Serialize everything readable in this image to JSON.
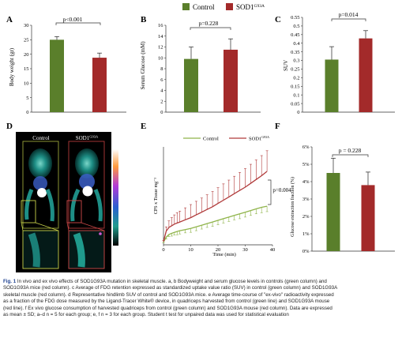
{
  "legend": {
    "items": [
      {
        "label": "Control",
        "color": "#5a7f2b"
      },
      {
        "label": "SOD1",
        "sup": "G93A",
        "color": "#a32a2a"
      }
    ]
  },
  "colors": {
    "control": "#5a7f2b",
    "sod": "#a32a2a",
    "control_line": "#8fb44a",
    "sod_line": "#b03a3a"
  },
  "panels": {
    "A": {
      "letter": "A",
      "p": "p<0.001"
    },
    "B": {
      "letter": "B",
      "p": "p=0.228"
    },
    "C": {
      "letter": "C",
      "p": "p=0.014"
    },
    "D": {
      "letter": "D",
      "col1": "Control",
      "col2": "SOD1",
      "col2_sup": "G93A",
      "scale_max": "3",
      "scale_min": "0",
      "scale_label": "SUV"
    },
    "E": {
      "letter": "E",
      "p": "p=0.004"
    },
    "F": {
      "letter": "F",
      "p": "p = 0.228"
    }
  },
  "chart_data": [
    {
      "id": "A",
      "type": "bar",
      "categories": [
        "Control",
        "SOD1G93A"
      ],
      "values": [
        25.0,
        18.8
      ],
      "errors": [
        1.1,
        1.6
      ],
      "ylabel": "Body weight (gr)",
      "ylim": [
        0,
        30
      ],
      "yticks": [
        "0",
        "5",
        "10",
        "15",
        "20",
        "25",
        "30"
      ]
    },
    {
      "id": "B",
      "type": "bar",
      "categories": [
        "Control",
        "SOD1G93A"
      ],
      "values": [
        9.8,
        11.5
      ],
      "errors": [
        2.2,
        2.0
      ],
      "ylabel": "Serum Glucose (mM)",
      "ylim": [
        0,
        16
      ],
      "yticks": [
        "0",
        "2",
        "4",
        "6",
        "8",
        "10",
        "12",
        "14",
        "16"
      ]
    },
    {
      "id": "C",
      "type": "bar",
      "categories": [
        "Control",
        "SOD1G93A"
      ],
      "values": [
        0.305,
        0.428
      ],
      "errors": [
        0.075,
        0.045
      ],
      "ylabel": "SUV",
      "ylim": [
        0,
        0.55
      ],
      "yticks": [
        "0",
        "0.05",
        "0.1",
        "0.15",
        "0.2",
        "0.25",
        "0.3",
        "0.35",
        "0.4",
        "0.45",
        "0.5",
        "0.55"
      ]
    },
    {
      "id": "E",
      "type": "line",
      "xlabel": "Time (min)",
      "ylabel": "CPS x Tissue mg⁻¹",
      "xlim": [
        0,
        40
      ],
      "xticks": [
        "0",
        "10",
        "20",
        "30",
        "40"
      ],
      "series": [
        {
          "name": "Control",
          "x": [
            0,
            1,
            2,
            3,
            4,
            5,
            6,
            8,
            10,
            12,
            14,
            16,
            18,
            20,
            22,
            24,
            26,
            28,
            30,
            32,
            34,
            36,
            38
          ],
          "y": [
            0.5,
            1.4,
            1.9,
            2.1,
            2.3,
            2.45,
            2.6,
            2.8,
            3.0,
            3.3,
            3.6,
            3.9,
            4.2,
            4.5,
            4.8,
            5.1,
            5.4,
            5.7,
            6.0,
            6.3,
            6.6,
            6.9,
            7.1
          ],
          "err": [
            0.1,
            0.3,
            0.4,
            0.5,
            0.5,
            0.6,
            0.6,
            0.6,
            0.7,
            0.7,
            0.7,
            0.7,
            0.8,
            0.8,
            0.8,
            0.8,
            0.8,
            0.9,
            0.9,
            0.9,
            0.9,
            1.0,
            1.0
          ]
        },
        {
          "name": "SOD1G93A",
          "x": [
            0,
            1,
            2,
            3,
            4,
            5,
            6,
            8,
            10,
            12,
            14,
            16,
            18,
            20,
            22,
            24,
            26,
            28,
            30,
            32,
            34,
            36,
            38
          ],
          "y": [
            0.6,
            2.5,
            3.2,
            3.5,
            3.8,
            4.0,
            4.2,
            4.6,
            5.0,
            5.5,
            6.0,
            6.5,
            7.0,
            7.6,
            8.2,
            8.8,
            9.4,
            10.0,
            10.6,
            11.3,
            12.0,
            12.7,
            13.5
          ],
          "err": [
            0.2,
            0.8,
            1.2,
            1.5,
            1.7,
            1.9,
            2.0,
            2.2,
            2.4,
            2.5,
            2.6,
            2.7,
            2.8,
            2.9,
            3.0,
            3.1,
            3.2,
            3.3,
            3.4,
            3.5,
            3.6,
            3.7,
            3.8
          ]
        }
      ]
    },
    {
      "id": "F",
      "type": "bar",
      "categories": [
        "Control",
        "SOD1G93A"
      ],
      "values": [
        4.5,
        3.8
      ],
      "errors": [
        0.85,
        0.75
      ],
      "ylabel": "Glucose extraction fraction (%)",
      "ylim": [
        0,
        6
      ],
      "yticks": [
        "0%",
        "1%",
        "2%",
        "3%",
        "4%",
        "5%",
        "6%"
      ]
    }
  ],
  "caption": {
    "label": "Fig. 1",
    "lines": [
      "In vivo and ex vivo effects of SOD1G93A mutation in skeletal muscle. a, b Bodyweight and serum glucose levels in controls (green column) and",
      "SOD1G93A mice (red column). c Average of FDG retention expressed as standardized uptake value ratio (SUV) in control (green column) and SOD1G93A",
      "skeletal muscle (red column). d Representative hindlimb SUV of control and SOD1G93A mice. e Average time-course of \"ex-vivo\" radioactivity expressed",
      "as a fraction of the FDG dose measured by the Ligand-Tracer White® device, in quadriceps harvested from control (green line) and SOD1G93A mouse",
      "(red line). f Ex vivo glucose consumption of harvested quadriceps from control (green column) and SOD1G93A mouse (red column). Data are expressed",
      "as mean ± SD; a–d n = 5 for each group; e, f n = 3 for each group. Student t test for unpaired data was used for statistical evaluation"
    ]
  }
}
